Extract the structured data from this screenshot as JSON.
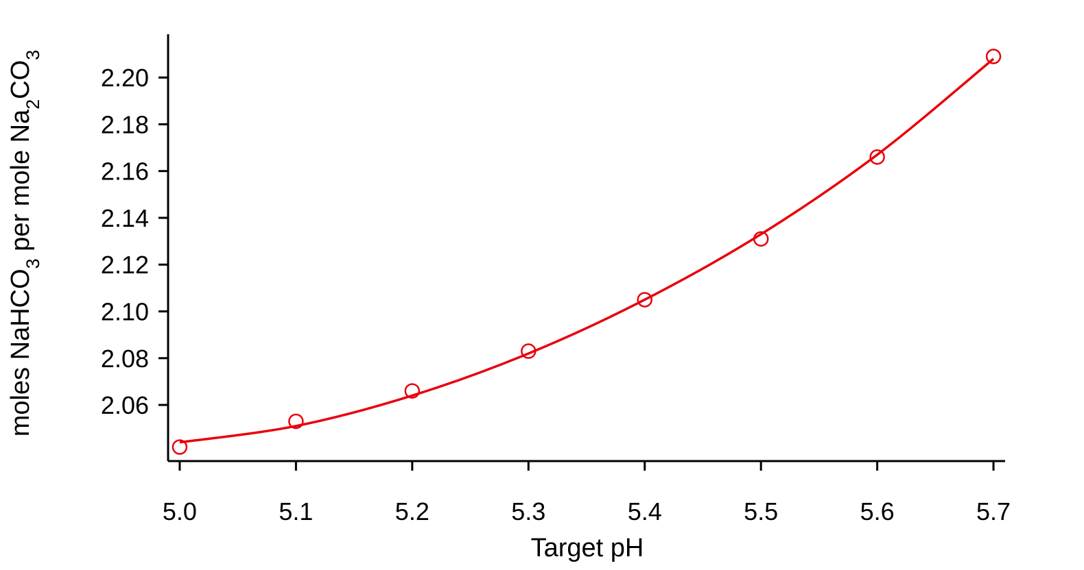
{
  "chart_data": {
    "type": "scatter",
    "title": "",
    "xlabel": "Target pH",
    "ylabel": {
      "parts": [
        {
          "text": "moles NaHCO",
          "sub": false
        },
        {
          "text": "3",
          "sub": true
        },
        {
          "text": " per mole Na",
          "sub": false
        },
        {
          "text": "2",
          "sub": true
        },
        {
          "text": "CO",
          "sub": false
        },
        {
          "text": "3",
          "sub": true
        }
      ]
    },
    "xlim": [
      4.99,
      5.71
    ],
    "ylim": [
      2.036,
      2.2185
    ],
    "x_ticks": [
      "5.0",
      "5.1",
      "5.2",
      "5.3",
      "5.4",
      "5.5",
      "5.6",
      "5.7"
    ],
    "y_ticks": [
      "2.06",
      "2.08",
      "2.10",
      "2.12",
      "2.14",
      "2.16",
      "2.18",
      "2.20"
    ],
    "grid": false,
    "series": [
      {
        "type": "scatter",
        "marker": "open-circle",
        "color": "#e8000b",
        "x": [
          5.0,
          5.1,
          5.2,
          5.3,
          5.4,
          5.5,
          5.6,
          5.7
        ],
        "y": [
          2.042,
          2.053,
          2.066,
          2.083,
          2.105,
          2.131,
          2.166,
          2.209
        ]
      },
      {
        "type": "line",
        "color": "#e8000b",
        "x": [
          5.0,
          5.1,
          5.2,
          5.3,
          5.4,
          5.5,
          5.6,
          5.7
        ],
        "y": [
          2.044,
          2.051,
          2.064,
          2.082,
          2.105,
          2.133,
          2.167,
          2.208
        ]
      }
    ]
  }
}
